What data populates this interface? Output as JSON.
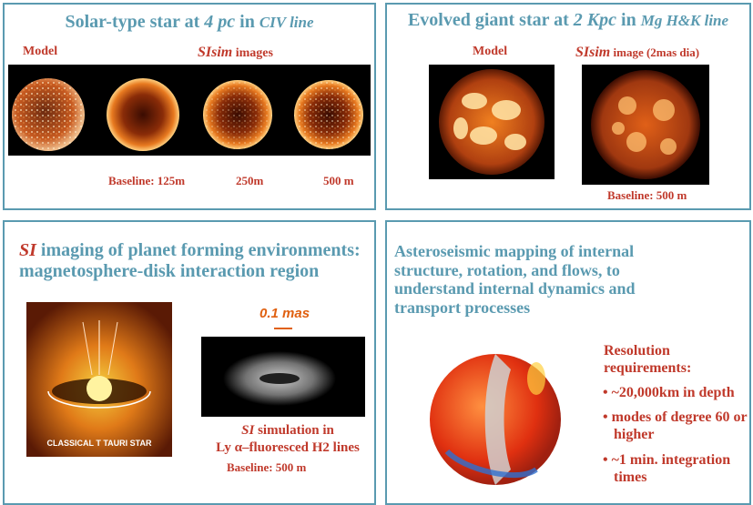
{
  "panel1": {
    "title_pre": "Solar-type star at ",
    "title_dist": "4 pc",
    "title_mid": " in ",
    "title_line": "CIV line",
    "label_model": "Model",
    "label_sisim": "SIsim",
    "label_images": " images",
    "baselines": [
      "Baseline:  125m",
      "250m",
      "500 m"
    ]
  },
  "panel2": {
    "title_pre": "Evolved giant star at ",
    "title_dist": "2 Kpc",
    "title_mid": " in ",
    "title_line": "Mg H&K line",
    "label_model": "Model",
    "label_sisim": "SIsim",
    "label_image": " image (2mas dia)",
    "baseline": "Baseline: 500 m"
  },
  "panel3": {
    "title_si": "SI",
    "title_rest": " imaging of  planet forming environments: magnetosphere-disk interaction region",
    "scale": "0.1 mas",
    "tauri_label": "CLASSICAL T TAURI STAR",
    "caption_si": "SI",
    "caption_1": " simulation in",
    "caption_2": "Ly α–fluoresced H2 lines",
    "baseline": "Baseline: 500 m"
  },
  "panel4": {
    "title": "Asteroseismic mapping of internal structure, rotation, and flows, to understand internal dynamics and transport processes",
    "resolution_title": "Resolution requirements:",
    "bullets": [
      "~20,000km in depth",
      "modes of degree 60 or higher",
      "~1 min. integration times"
    ]
  }
}
